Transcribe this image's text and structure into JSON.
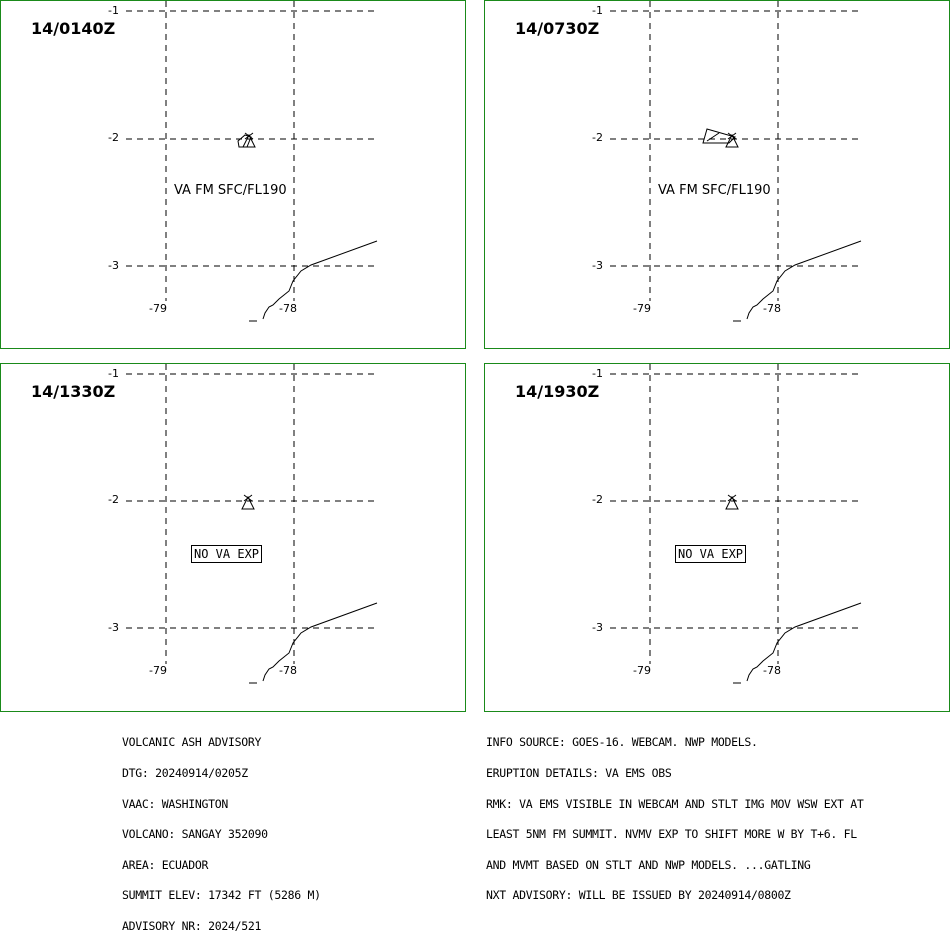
{
  "panels": [
    {
      "time": "14/0140Z",
      "annotation": "VA FM SFC/FL190",
      "annotation_boxed": false,
      "ash_polygon": "small",
      "lat_labels": [
        "-1",
        "-2",
        "-3"
      ],
      "lon_labels": [
        "-79",
        "-78"
      ]
    },
    {
      "time": "14/0730Z",
      "annotation": "VA FM SFC/FL190",
      "annotation_boxed": false,
      "ash_polygon": "larger",
      "lat_labels": [
        "-1",
        "-2",
        "-3"
      ],
      "lon_labels": [
        "-79",
        "-78"
      ]
    },
    {
      "time": "14/1330Z",
      "annotation": "NO VA EXP",
      "annotation_boxed": true,
      "ash_polygon": "none",
      "lat_labels": [
        "-1",
        "-2",
        "-3"
      ],
      "lon_labels": [
        "-79",
        "-78"
      ]
    },
    {
      "time": "14/1930Z",
      "annotation": "NO VA EXP",
      "annotation_boxed": true,
      "ash_polygon": "none",
      "lat_labels": [
        "-1",
        "-2",
        "-3"
      ],
      "lon_labels": [
        "-79",
        "-78"
      ]
    }
  ],
  "volcano_icon": "volcano-triangle-icon",
  "colors": {
    "panel_border": "#1a8a1a",
    "lines": "#000000"
  },
  "advisory_left": [
    "VOLCANIC ASH ADVISORY",
    "DTG: 20240914/0205Z",
    "VAAC: WASHINGTON",
    "VOLCANO: SANGAY 352090",
    "AREA: ECUADOR",
    "SUMMIT ELEV: 17342 FT (5286 M)",
    "ADVISORY NR: 2024/521"
  ],
  "advisory_right": [
    "INFO SOURCE: GOES-16. WEBCAM. NWP MODELS.",
    "ERUPTION DETAILS: VA EMS OBS",
    "RMK: VA EMS VISIBLE IN WEBCAM AND STLT IMG MOV WSW EXT AT",
    "LEAST 5NM FM SUMMIT. NVMV EXP TO SHIFT MORE W BY T+6. FL",
    "AND MVMT BASED ON STLT AND NWP MODELS. ...GATLING",
    "NXT ADVISORY: WILL BE ISSUED BY 20240914/0800Z"
  ]
}
